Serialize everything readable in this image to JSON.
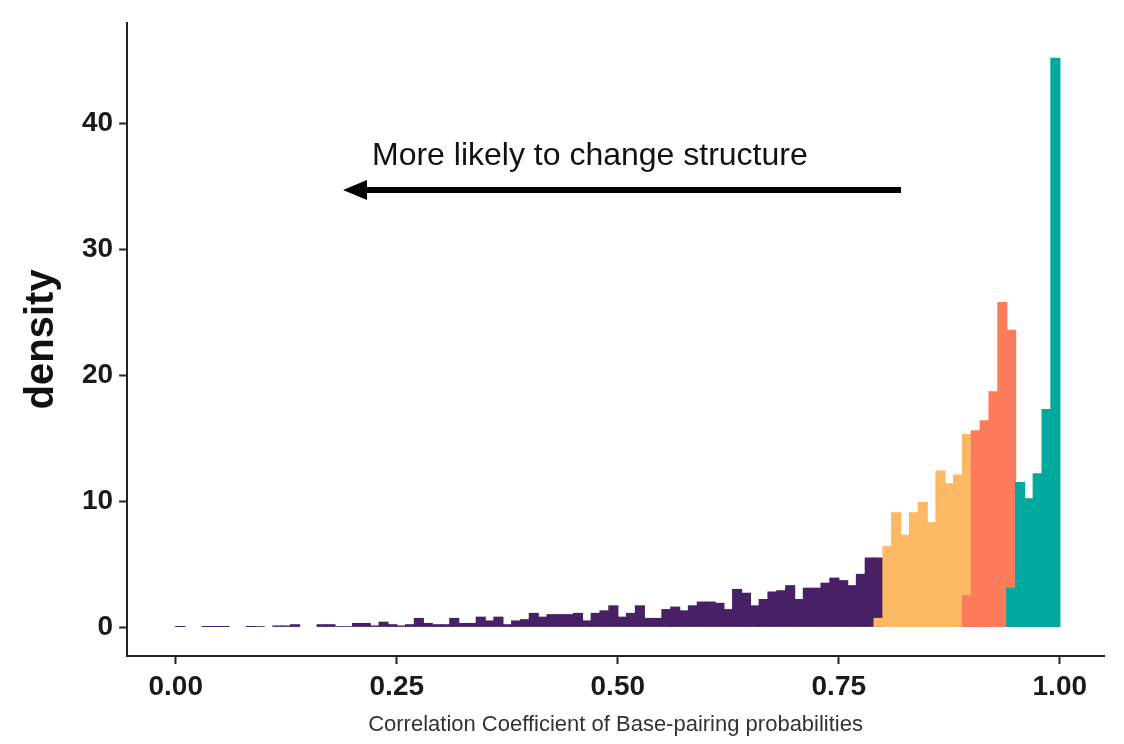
{
  "chart_data": {
    "type": "histogram",
    "xlabel": "Correlation Coefficient of Base-pairing probabilities",
    "ylabel": "density",
    "annotations": [
      "More likely to change structure"
    ],
    "xlim": [
      -0.055,
      1.05
    ],
    "ylim": [
      -2.3,
      48
    ],
    "xticks": [
      {
        "value": 0,
        "label": "0.00"
      },
      {
        "value": 0.25,
        "label": "0.25"
      },
      {
        "value": 0.5,
        "label": "0.50"
      },
      {
        "value": 0.75,
        "label": "0.75"
      },
      {
        "value": 1,
        "label": "1.00"
      }
    ],
    "yticks": [
      0,
      10,
      20,
      30,
      40
    ],
    "grid": false,
    "bins": [
      0,
      0.01,
      0.02,
      0.03,
      0.04,
      0.05,
      0.06,
      0.07,
      0.08,
      0.09,
      0.1,
      0.11,
      0.12,
      0.13,
      0.14,
      0.15,
      0.16,
      0.17,
      0.18,
      0.19,
      0.2,
      0.21,
      0.22,
      0.23,
      0.24,
      0.25,
      0.26,
      0.27,
      0.28,
      0.29,
      0.3,
      0.31,
      0.32,
      0.33,
      0.34,
      0.35,
      0.36,
      0.37,
      0.38,
      0.39,
      0.4,
      0.41,
      0.42,
      0.43,
      0.44,
      0.45,
      0.46,
      0.47,
      0.48,
      0.49,
      0.5,
      0.51,
      0.52,
      0.53,
      0.54,
      0.55,
      0.56,
      0.57,
      0.58,
      0.59,
      0.6,
      0.61,
      0.62,
      0.63,
      0.64,
      0.65,
      0.66,
      0.67,
      0.68,
      0.69,
      0.7,
      0.71,
      0.72,
      0.73,
      0.74,
      0.75,
      0.76,
      0.77,
      0.78,
      0.79,
      0.8,
      0.81,
      0.82,
      0.83,
      0.84,
      0.85,
      0.86,
      0.87,
      0.88,
      0.89,
      0.9,
      0.91,
      0.92,
      0.93,
      0.94,
      0.95,
      0.96,
      0.97,
      0.98,
      0.99,
      1.0
    ],
    "series": [
      {
        "color": "#482066",
        "values": [
          0.05,
          null,
          null,
          0.05,
          0.05,
          0.05,
          null,
          null,
          0.05,
          0.05,
          null,
          0.1,
          0.1,
          0.2,
          null,
          null,
          0.2,
          0.2,
          0.05,
          0.05,
          0.3,
          0.3,
          0.1,
          0.4,
          0.2,
          0.1,
          0.2,
          0.7,
          0.3,
          0.2,
          0.2,
          0.7,
          0.3,
          0.3,
          0.8,
          0.5,
          0.8,
          0.2,
          0.5,
          0.6,
          1.1,
          0.8,
          1.0,
          1.0,
          1.0,
          1.1,
          0.5,
          1.1,
          1.3,
          1.7,
          0.8,
          1.1,
          1.7,
          0.7,
          0.7,
          1.4,
          1.6,
          1.3,
          1.7,
          2.0,
          2.0,
          1.9,
          1.4,
          3.0,
          2.7,
          1.7,
          2.2,
          2.8,
          2.9,
          3.3,
          2.2,
          3.1,
          3.1,
          3.5,
          3.9,
          3.7,
          3.3,
          4.2,
          5.5,
          5.5,
          null,
          null,
          null,
          null,
          null,
          null,
          null,
          null,
          null,
          null,
          null,
          null,
          null,
          null,
          null,
          null,
          null,
          null,
          null,
          null
        ]
      },
      {
        "color": "#fdb863",
        "values": [
          null,
          null,
          null,
          null,
          null,
          null,
          null,
          null,
          null,
          null,
          null,
          null,
          null,
          null,
          null,
          null,
          null,
          null,
          null,
          null,
          null,
          null,
          null,
          null,
          null,
          null,
          null,
          null,
          null,
          null,
          null,
          null,
          null,
          null,
          null,
          null,
          null,
          null,
          null,
          null,
          null,
          null,
          null,
          null,
          null,
          null,
          null,
          null,
          null,
          null,
          null,
          null,
          null,
          null,
          null,
          null,
          null,
          null,
          null,
          null,
          null,
          null,
          null,
          null,
          null,
          null,
          null,
          null,
          null,
          null,
          null,
          null,
          null,
          null,
          null,
          null,
          null,
          null,
          null,
          0.7,
          6.4,
          9.1,
          7.3,
          9.1,
          9.9,
          8.3,
          12.4,
          11.4,
          12.1,
          15.3,
          null,
          null,
          null,
          null,
          null,
          null,
          null,
          null,
          null,
          null
        ]
      },
      {
        "color": "#fc7b5b",
        "values": [
          null,
          null,
          null,
          null,
          null,
          null,
          null,
          null,
          null,
          null,
          null,
          null,
          null,
          null,
          null,
          null,
          null,
          null,
          null,
          null,
          null,
          null,
          null,
          null,
          null,
          null,
          null,
          null,
          null,
          null,
          null,
          null,
          null,
          null,
          null,
          null,
          null,
          null,
          null,
          null,
          null,
          null,
          null,
          null,
          null,
          null,
          null,
          null,
          null,
          null,
          null,
          null,
          null,
          null,
          null,
          null,
          null,
          null,
          null,
          null,
          null,
          null,
          null,
          null,
          null,
          null,
          null,
          null,
          null,
          null,
          null,
          null,
          null,
          null,
          null,
          null,
          null,
          null,
          null,
          null,
          null,
          null,
          null,
          null,
          null,
          null,
          null,
          null,
          null,
          2.5,
          15.6,
          16.4,
          18.7,
          25.8,
          23.6,
          null,
          null,
          null,
          null,
          null
        ]
      },
      {
        "color": "#00a99d",
        "values": [
          null,
          null,
          null,
          null,
          null,
          null,
          null,
          null,
          null,
          null,
          null,
          null,
          null,
          null,
          null,
          null,
          null,
          null,
          null,
          null,
          null,
          null,
          null,
          null,
          null,
          null,
          null,
          null,
          null,
          null,
          null,
          null,
          null,
          null,
          null,
          null,
          null,
          null,
          null,
          null,
          null,
          null,
          null,
          null,
          null,
          null,
          null,
          null,
          null,
          null,
          null,
          null,
          null,
          null,
          null,
          null,
          null,
          null,
          null,
          null,
          null,
          null,
          null,
          null,
          null,
          null,
          null,
          null,
          null,
          null,
          null,
          null,
          null,
          null,
          null,
          null,
          null,
          null,
          null,
          null,
          null,
          null,
          null,
          null,
          null,
          null,
          null,
          null,
          null,
          null,
          null,
          null,
          null,
          null,
          3.1,
          11.5,
          10.2,
          12.2,
          17.3,
          45.2
        ]
      }
    ]
  }
}
